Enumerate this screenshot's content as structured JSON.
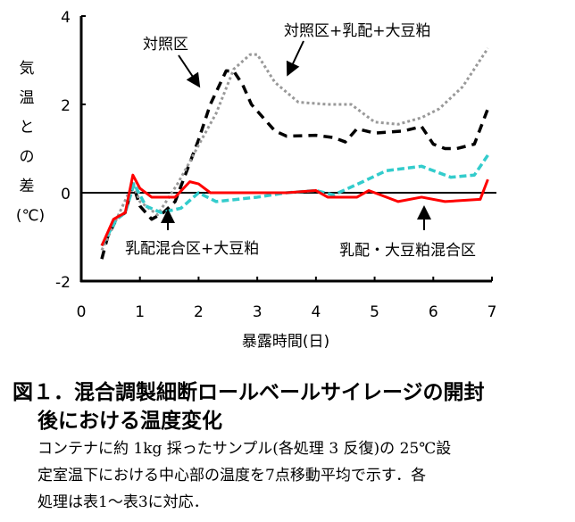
{
  "chart_data": {
    "type": "line",
    "title": "",
    "xlabel": "暴露時間(日)",
    "ylabel": [
      "気",
      "温",
      "と",
      "の",
      "差",
      "(℃)"
    ],
    "xlim": [
      0,
      7
    ],
    "ylim": [
      -2,
      4
    ],
    "xticks": [
      "0",
      "1",
      "2",
      "3",
      "4",
      "5",
      "6",
      "7"
    ],
    "yticks": [
      "-2",
      "0",
      "2",
      "4"
    ],
    "grid": false,
    "series": [
      {
        "name": "対照区",
        "style": "black-dashed",
        "color": "#000000",
        "x": [
          0.35,
          0.45,
          0.6,
          0.75,
          0.88,
          1.0,
          1.2,
          1.4,
          1.6,
          1.8,
          2.0,
          2.2,
          2.47,
          2.6,
          2.75,
          2.9,
          3.1,
          3.3,
          3.5,
          4.0,
          4.3,
          4.5,
          4.7,
          5.0,
          5.5,
          5.8,
          6.0,
          6.2,
          6.4,
          6.7,
          6.93
        ],
        "y": [
          -1.5,
          -1.0,
          -0.6,
          -0.45,
          0.2,
          -0.3,
          -0.6,
          -0.45,
          -0.2,
          0.5,
          1.2,
          2.0,
          2.76,
          2.75,
          2.45,
          2.0,
          1.7,
          1.4,
          1.28,
          1.3,
          1.25,
          1.15,
          1.45,
          1.35,
          1.4,
          1.5,
          1.1,
          1.0,
          1.0,
          1.1,
          1.9
        ]
      },
      {
        "name": "対照区+乳配+大豆粕",
        "style": "gray-dotted",
        "color": "#999999",
        "x": [
          0.35,
          0.6,
          0.88,
          1.0,
          1.3,
          1.64,
          1.85,
          2.0,
          2.3,
          2.6,
          2.88,
          3.0,
          3.3,
          3.7,
          4.2,
          4.6,
          5.0,
          5.4,
          5.8,
          6.1,
          6.5,
          6.93
        ],
        "y": [
          -1.3,
          -0.6,
          0.2,
          -0.2,
          -0.5,
          0.2,
          0.7,
          1.08,
          1.8,
          2.8,
          3.13,
          3.13,
          2.5,
          2.05,
          2.0,
          2.0,
          1.6,
          1.55,
          1.7,
          1.9,
          2.4,
          3.27
        ]
      },
      {
        "name": "乳配混合区+大豆粕",
        "style": "cyan-dashed",
        "color": "#33cccc",
        "x": [
          0.35,
          0.6,
          0.75,
          0.9,
          1.1,
          1.36,
          1.7,
          2.0,
          2.3,
          3.0,
          3.5,
          4.0,
          4.3,
          4.8,
          5.2,
          5.8,
          6.3,
          6.7,
          6.93
        ],
        "y": [
          -1.2,
          -0.6,
          -0.45,
          0.2,
          -0.3,
          -0.45,
          -0.35,
          0.0,
          -0.2,
          -0.1,
          0.0,
          0.05,
          -0.05,
          0.25,
          0.5,
          0.6,
          0.35,
          0.4,
          0.85
        ]
      },
      {
        "name": "乳配・大豆粕混合区",
        "style": "red-solid",
        "color": "#ff0000",
        "x": [
          0.35,
          0.55,
          0.75,
          0.88,
          1.0,
          1.2,
          1.6,
          1.85,
          2.0,
          2.2,
          3.5,
          4.0,
          4.2,
          4.7,
          4.9,
          5.4,
          5.8,
          6.2,
          6.8,
          6.93
        ],
        "y": [
          -1.2,
          -0.6,
          -0.45,
          0.4,
          0.1,
          -0.1,
          -0.1,
          0.25,
          0.2,
          0.0,
          0.0,
          0.05,
          -0.1,
          -0.1,
          0.05,
          -0.2,
          -0.1,
          -0.2,
          -0.15,
          0.3
        ]
      }
    ],
    "annotations": [
      "対照区",
      "対照区+乳配+大豆粕",
      "乳配混合区+大豆粕",
      "乳配・大豆粕混合区"
    ]
  },
  "caption": {
    "line1": "図１．混合調製細断ロールベールサイレージの開封",
    "line2": "後における温度変化",
    "body1": "コンテナに約 1kg 採ったサンプル(各処理 3 反復)の 25℃設",
    "body2": "定室温下における中心部の温度を7点移動平均で示す．各",
    "body3": "処理は表1～表3に対応．"
  }
}
